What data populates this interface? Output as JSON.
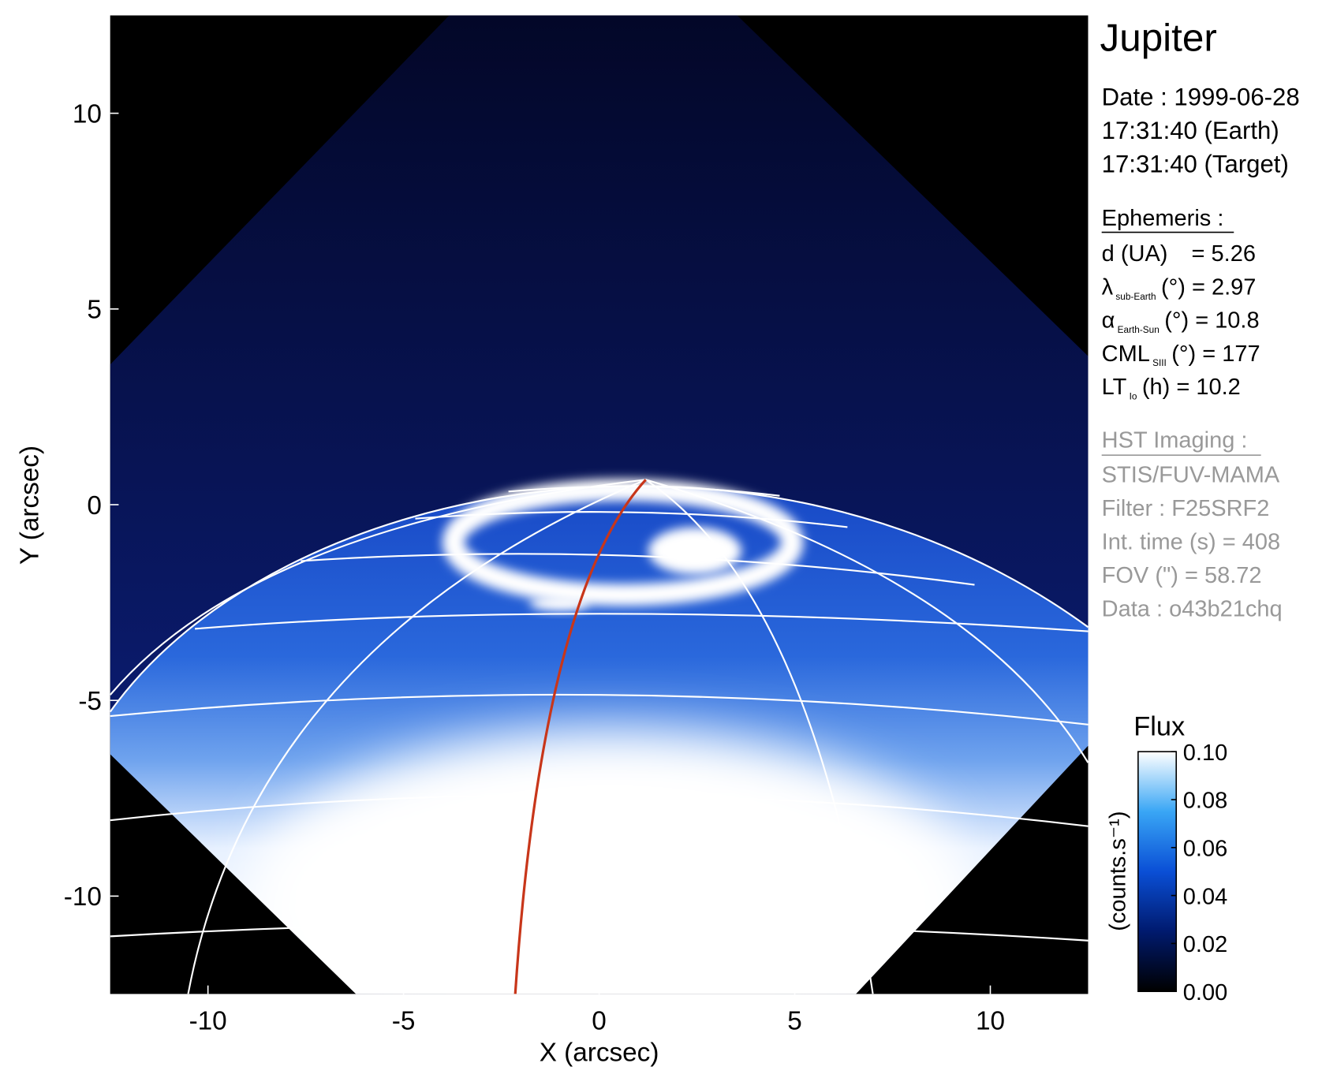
{
  "chart_data": {
    "type": "image",
    "title": "Jupiter",
    "xlabel": "X (arcsec)",
    "ylabel": "Y (arcsec)",
    "xlim": [
      -12.5,
      12.5
    ],
    "ylim": [
      -12.5,
      12.5
    ],
    "xticks": [
      -10,
      -5,
      0,
      5,
      10
    ],
    "yticks": [
      -10,
      -5,
      0,
      5,
      10
    ],
    "colorbar": {
      "title": "Flux",
      "unit": "(counts.s⁻¹)",
      "lim": [
        0,
        0.1
      ],
      "ticks": [
        {
          "value": 0,
          "label": "0.00"
        },
        {
          "value": 0.02,
          "label": "0.02"
        },
        {
          "value": 0.04,
          "label": "0.04"
        },
        {
          "value": 0.06,
          "label": "0.06"
        },
        {
          "value": 0.08,
          "label": "0.08"
        },
        {
          "value": 0.1,
          "label": "0.10"
        }
      ],
      "colors": [
        "#000000",
        "#001a6e",
        "#0a4fd6",
        "#39a6f5",
        "#ffffff"
      ]
    },
    "meridian_color": "#c8361a"
  },
  "info": {
    "date": [
      "Date : 1999-06-28",
      "17:31:40 (Earth)",
      "17:31:40 (Target)"
    ],
    "ephemeris_title": "Ephemeris :",
    "ephemeris": [
      {
        "symbol": "d (UA)",
        "sub": "",
        "rest": "= 5.26"
      },
      {
        "symbol": "λ",
        "sub": "sub-Earth",
        "rest": "(°) = 2.97"
      },
      {
        "symbol": "α",
        "sub": "Earth-Sun",
        "rest": "(°) = 10.8"
      },
      {
        "symbol": "CML",
        "sub": "SIII",
        "rest": "(°) = 177"
      },
      {
        "symbol": "LT",
        "sub": "Io",
        "rest": "(h) = 10.2"
      }
    ],
    "imaging_title": "HST Imaging :",
    "imaging": [
      "STIS/FUV-MAMA",
      "Filter : F25SRF2",
      "Int. time (s) = 408",
      "FOV (\") = 58.72",
      "Data : o43b21chq"
    ]
  }
}
